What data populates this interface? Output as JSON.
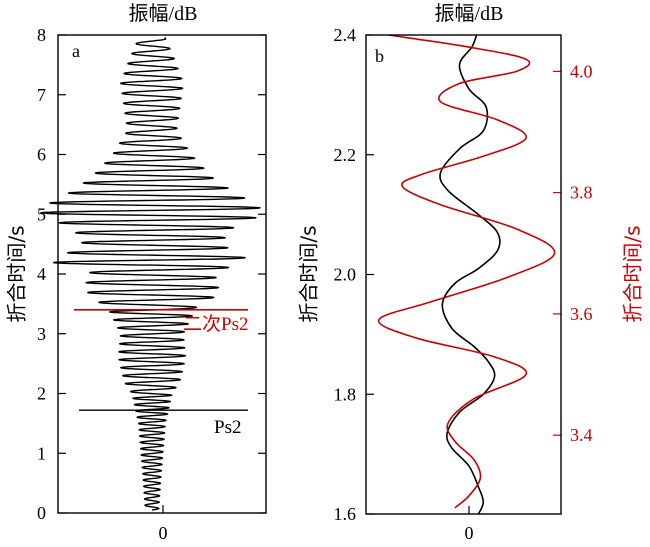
{
  "chart_data": [
    {
      "panel_label": "a",
      "type": "line",
      "title": "振幅/dB",
      "ylabel": "折合时间/s",
      "xtick_labels": [
        "0"
      ],
      "yticks": [
        0,
        1,
        2,
        3,
        4,
        5,
        6,
        7,
        8
      ],
      "ylim": [
        0,
        8
      ],
      "grid": false,
      "annotations": [
        {
          "text": "二次Ps2",
          "time": 3.4,
          "color": "#cc0000"
        },
        {
          "text": "Ps2",
          "time": 1.72,
          "color": "#000000"
        }
      ],
      "series": [
        {
          "color": "#000000",
          "time_s": [
            0.05,
            0.6,
            1.5,
            1.75,
            2.0,
            2.2,
            2.6,
            3.0,
            3.45,
            3.6,
            3.8,
            4.05,
            4.2,
            4.5,
            4.75,
            5.0,
            5.15,
            5.35,
            5.6,
            6.0,
            6.4,
            6.8,
            7.2,
            7.6,
            7.95
          ],
          "amplitude_envelope": [
            0.06,
            0.08,
            0.12,
            0.15,
            0.18,
            0.25,
            0.3,
            0.28,
            0.4,
            0.55,
            0.6,
            0.55,
            0.9,
            0.62,
            0.7,
            1.0,
            0.95,
            0.75,
            0.55,
            0.35,
            0.22,
            0.25,
            0.28,
            0.2,
            0.12
          ]
        }
      ]
    },
    {
      "panel_label": "b",
      "type": "line",
      "title": "振幅/dB",
      "ylabel_left": "折合时间/s",
      "ylabel_right": "折合时间/s",
      "xtick_labels": [
        "0"
      ],
      "yticks_left": [
        "1.6",
        "1.8",
        "2.0",
        "2.2",
        "2.4"
      ],
      "ylim_left": [
        1.6,
        2.4
      ],
      "yticks_right": [
        "3.4",
        "3.6",
        "3.8",
        "4.0"
      ],
      "ylim_right": [
        3.27,
        4.06
      ],
      "grid": false,
      "series": [
        {
          "color": "#000000",
          "axis": "left",
          "time_s": [
            1.6,
            1.62,
            1.645,
            1.68,
            1.71,
            1.735,
            1.77,
            1.8,
            1.83,
            1.855,
            1.88,
            1.91,
            1.95,
            1.985,
            2.01,
            2.04,
            2.07,
            2.1,
            2.14,
            2.17,
            2.21,
            2.24,
            2.28,
            2.31,
            2.35,
            2.38,
            2.4
          ],
          "amplitude": [
            0.1,
            0.15,
            0.1,
            0.0,
            -0.18,
            -0.23,
            -0.1,
            0.15,
            0.27,
            0.2,
            0.05,
            -0.18,
            -0.28,
            -0.15,
            0.1,
            0.3,
            0.3,
            0.1,
            -0.22,
            -0.3,
            -0.1,
            0.15,
            0.18,
            0.0,
            -0.1,
            0.03,
            0.08
          ]
        },
        {
          "color": "#cc0000",
          "axis": "right",
          "time_s": [
            3.28,
            3.3,
            3.33,
            3.36,
            3.39,
            3.42,
            3.46,
            3.5,
            3.53,
            3.56,
            3.59,
            3.62,
            3.66,
            3.7,
            3.74,
            3.78,
            3.81,
            3.83,
            3.86,
            3.89,
            3.92,
            3.95,
            3.98,
            4.0,
            4.02,
            4.04,
            4.06
          ],
          "amplitude": [
            -0.15,
            0.0,
            0.12,
            0.05,
            -0.15,
            -0.22,
            0.05,
            0.6,
            0.25,
            -0.55,
            -0.95,
            -0.4,
            0.4,
            0.9,
            0.5,
            -0.3,
            -0.7,
            -0.5,
            0.15,
            0.6,
            0.3,
            -0.3,
            -0.1,
            0.5,
            0.6,
            0.0,
            -0.85
          ]
        }
      ]
    }
  ]
}
